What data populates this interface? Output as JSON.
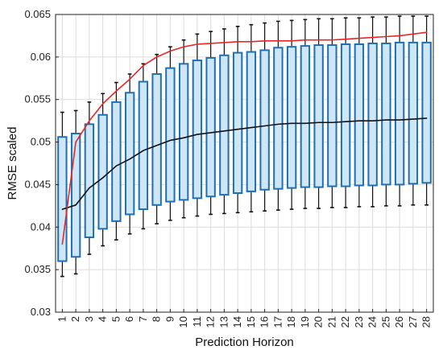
{
  "chart_data": {
    "type": "box",
    "xlabel": "Prediction Horizon",
    "ylabel": "RMSE scaled",
    "ylim": [
      0.03,
      0.065
    ],
    "yticks": [
      0.03,
      0.035,
      0.04,
      0.045,
      0.05,
      0.055,
      0.06,
      0.065
    ],
    "ytick_labels": [
      "0.03",
      "0.035",
      "0.04",
      "0.045",
      "0.05",
      "0.055",
      "0.06",
      "0.065"
    ],
    "categories": [
      "1",
      "2",
      "3",
      "4",
      "5",
      "6",
      "7",
      "8",
      "9",
      "10",
      "11",
      "12",
      "13",
      "14",
      "15",
      "16",
      "17",
      "18",
      "19",
      "20",
      "21",
      "22",
      "23",
      "24",
      "25",
      "26",
      "27",
      "28"
    ],
    "grid": true,
    "boxes": {
      "whisker_low": [
        0.0342,
        0.0345,
        0.0368,
        0.0378,
        0.0385,
        0.0392,
        0.0398,
        0.0404,
        0.0408,
        0.0411,
        0.0413,
        0.0415,
        0.0416,
        0.0417,
        0.0418,
        0.0419,
        0.042,
        0.0421,
        0.0422,
        0.0422,
        0.0423,
        0.0423,
        0.0424,
        0.0424,
        0.0425,
        0.0425,
        0.0426,
        0.0426
      ],
      "q1": [
        0.036,
        0.0365,
        0.0388,
        0.0398,
        0.0407,
        0.0415,
        0.0421,
        0.0426,
        0.043,
        0.0432,
        0.0434,
        0.0436,
        0.0438,
        0.044,
        0.0442,
        0.0444,
        0.0445,
        0.0446,
        0.0447,
        0.0447,
        0.0448,
        0.0448,
        0.0449,
        0.0449,
        0.045,
        0.045,
        0.0451,
        0.0452
      ],
      "q3": [
        0.0506,
        0.051,
        0.0521,
        0.0532,
        0.0547,
        0.0558,
        0.0571,
        0.058,
        0.0587,
        0.0592,
        0.0596,
        0.0599,
        0.0602,
        0.0605,
        0.0606,
        0.0608,
        0.0611,
        0.0612,
        0.0613,
        0.0614,
        0.0614,
        0.0615,
        0.0615,
        0.0616,
        0.0616,
        0.0617,
        0.0617,
        0.0617
      ],
      "whisker_high": [
        0.0535,
        0.0537,
        0.0547,
        0.0557,
        0.057,
        0.058,
        0.0592,
        0.0603,
        0.0612,
        0.062,
        0.0627,
        0.063,
        0.0633,
        0.0636,
        0.0638,
        0.064,
        0.0642,
        0.0643,
        0.0644,
        0.0645,
        0.0645,
        0.0646,
        0.0646,
        0.0647,
        0.0647,
        0.0648,
        0.0648,
        0.0648
      ]
    },
    "series": [
      {
        "color": "#111111",
        "values": [
          0.0421,
          0.0426,
          0.0446,
          0.0458,
          0.0472,
          0.048,
          0.049,
          0.0496,
          0.0502,
          0.0505,
          0.0509,
          0.0511,
          0.0513,
          0.0515,
          0.0517,
          0.0519,
          0.0521,
          0.0522,
          0.0522,
          0.0523,
          0.0523,
          0.0524,
          0.0525,
          0.0525,
          0.0526,
          0.0526,
          0.0527,
          0.0528
        ]
      },
      {
        "color": "#e8262a",
        "values": [
          0.038,
          0.05,
          0.0525,
          0.0545,
          0.056,
          0.0574,
          0.059,
          0.06,
          0.0607,
          0.0612,
          0.0615,
          0.0616,
          0.0617,
          0.0618,
          0.0618,
          0.0619,
          0.0619,
          0.0619,
          0.062,
          0.062,
          0.062,
          0.0621,
          0.0622,
          0.0623,
          0.0624,
          0.0625,
          0.0627,
          0.0629
        ]
      }
    ],
    "colors": {
      "box_fill": "#cfe6f5",
      "box_edge": "#1f6fb5",
      "whisker": "#111111",
      "grid": "#dcdcdc",
      "axis": "#222222"
    }
  }
}
